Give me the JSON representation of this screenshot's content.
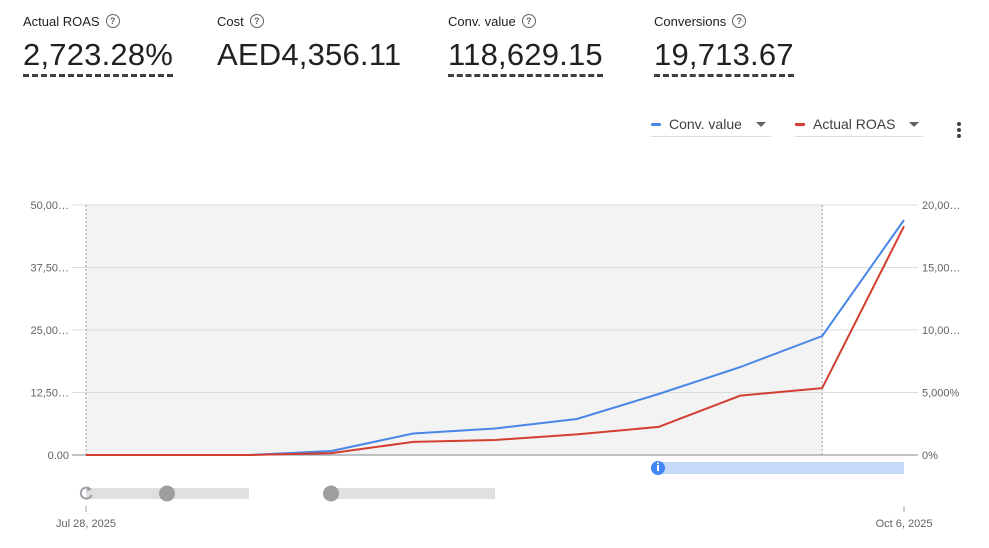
{
  "metrics": [
    {
      "label": "Actual ROAS",
      "value": "2,723.28%"
    },
    {
      "label": "Cost",
      "value": "AED4,356.11"
    },
    {
      "label": "Conv. value",
      "value": "118,629.15"
    },
    {
      "label": "Conversions",
      "value": "19,713.67"
    }
  ],
  "legend": [
    {
      "label": "Conv. value",
      "color": "#4a86e8"
    },
    {
      "label": "Actual ROAS",
      "color": "#d23f31"
    }
  ],
  "icons": {
    "help": "help-circle-icon",
    "more": "more-vert-icon",
    "reset": "refresh-icon",
    "info": "info-icon"
  },
  "chart_data": {
    "type": "line",
    "x": [
      "Jul 28, 2025",
      "",
      "",
      "",
      "",
      "",
      "",
      "",
      "",
      "",
      "Oct 6, 2025"
    ],
    "x_tick_labels": [
      "Jul 28, 2025",
      "Oct 6, 2025"
    ],
    "left_axis": {
      "ticks": [
        "0.00",
        "12,50…",
        "25,00…",
        "37,50…",
        "50,00…"
      ],
      "range": [
        0,
        50000
      ]
    },
    "right_axis": {
      "ticks": [
        "0%",
        "5,000%",
        "10,00…",
        "15,00…",
        "20,00…"
      ],
      "range": [
        0,
        20000
      ]
    },
    "series": [
      {
        "name": "Conv. value",
        "axis": "left",
        "color": "#4a86e8",
        "values": [
          0,
          0,
          0,
          800,
          4300,
          5300,
          7200,
          12200,
          17600,
          23800,
          47000
        ]
      },
      {
        "name": "Actual ROAS",
        "axis": "right",
        "color": "#d23f31",
        "values": [
          0,
          0,
          0,
          150,
          1050,
          1200,
          1650,
          2250,
          4750,
          5350,
          18300
        ]
      }
    ],
    "grid": true
  }
}
